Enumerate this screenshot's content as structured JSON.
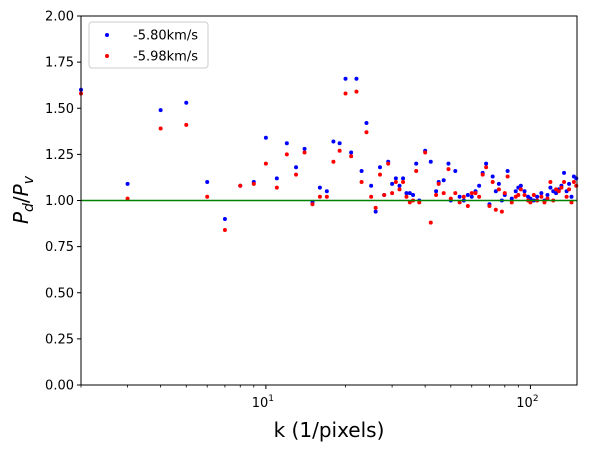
{
  "chart_data": {
    "type": "scatter",
    "xlabel": "k (1/pixels)",
    "ylabel": "P_d/P_v",
    "xscale": "log",
    "xlim": [
      2,
      150
    ],
    "ylim": [
      0,
      2
    ],
    "grid": false,
    "legend_position": "top-left",
    "x_ticks": [
      {
        "value": 10,
        "mantissa": "10",
        "exp": "1"
      },
      {
        "value": 100,
        "mantissa": "10",
        "exp": "2"
      }
    ],
    "y_ticks": [
      "0.00",
      "0.25",
      "0.50",
      "0.75",
      "1.00",
      "1.25",
      "1.50",
      "1.75",
      "2.00"
    ],
    "reference_line": {
      "y": 1.0,
      "color": "#008000"
    },
    "series": [
      {
        "name": "-5.80km/s",
        "color": "#0000ff",
        "points": [
          [
            2,
            1.6
          ],
          [
            3,
            1.09
          ],
          [
            4,
            1.49
          ],
          [
            5,
            1.53
          ],
          [
            6,
            1.1
          ],
          [
            7,
            0.9
          ],
          [
            8,
            1.08
          ],
          [
            9,
            1.1
          ],
          [
            10,
            1.34
          ],
          [
            11,
            1.12
          ],
          [
            12,
            1.31
          ],
          [
            13,
            1.18
          ],
          [
            14,
            1.28
          ],
          [
            15,
            0.99
          ],
          [
            16,
            1.07
          ],
          [
            17,
            1.05
          ],
          [
            18,
            1.32
          ],
          [
            19,
            1.31
          ],
          [
            20,
            1.66
          ],
          [
            21,
            1.26
          ],
          [
            22,
            1.66
          ],
          [
            23,
            1.16
          ],
          [
            24,
            1.42
          ],
          [
            25,
            1.08
          ],
          [
            26,
            0.94
          ],
          [
            27,
            1.18
          ],
          [
            28,
            1.03
          ],
          [
            29,
            1.21
          ],
          [
            30,
            1.09
          ],
          [
            31,
            1.12
          ],
          [
            32,
            1.08
          ],
          [
            33,
            1.12
          ],
          [
            34,
            1.04
          ],
          [
            35,
            1.04
          ],
          [
            36,
            1.03
          ],
          [
            37,
            1.2
          ],
          [
            38,
            1.0
          ],
          [
            40,
            1.27
          ],
          [
            42,
            1.21
          ],
          [
            44,
            1.05
          ],
          [
            45,
            1.1
          ],
          [
            47,
            1.11
          ],
          [
            49,
            1.2
          ],
          [
            50,
            1.0
          ],
          [
            52,
            1.16
          ],
          [
            54,
            1.02
          ],
          [
            56,
            1.0
          ],
          [
            58,
            1.03
          ],
          [
            60,
            1.02
          ],
          [
            62,
            1.05
          ],
          [
            64,
            1.08
          ],
          [
            66,
            1.15
          ],
          [
            68,
            1.2
          ],
          [
            70,
            0.98
          ],
          [
            72,
            1.13
          ],
          [
            74,
            1.05
          ],
          [
            76,
            1.09
          ],
          [
            78,
            1.0
          ],
          [
            80,
            1.03
          ],
          [
            82,
            1.16
          ],
          [
            85,
            1.01
          ],
          [
            88,
            1.05
          ],
          [
            90,
            1.07
          ],
          [
            92,
            1.08
          ],
          [
            95,
            1.05
          ],
          [
            98,
            1.02
          ],
          [
            100,
            1.01
          ],
          [
            103,
            1.0
          ],
          [
            106,
            1.02
          ],
          [
            110,
            1.04
          ],
          [
            113,
            1.0
          ],
          [
            116,
            1.03
          ],
          [
            119,
            1.07
          ],
          [
            122,
            1.05
          ],
          [
            125,
            1.04
          ],
          [
            128,
            1.06
          ],
          [
            131,
            1.08
          ],
          [
            134,
            1.15
          ],
          [
            137,
            1.05
          ],
          [
            140,
            1.09
          ],
          [
            143,
            1.02
          ],
          [
            146,
            1.13
          ],
          [
            149,
            1.12
          ]
        ]
      },
      {
        "name": "-5.98km/s",
        "color": "#ff0000",
        "points": [
          [
            2,
            1.58
          ],
          [
            3,
            1.01
          ],
          [
            4,
            1.39
          ],
          [
            5,
            1.41
          ],
          [
            6,
            1.02
          ],
          [
            7,
            0.84
          ],
          [
            8,
            1.08
          ],
          [
            9,
            1.09
          ],
          [
            10,
            1.2
          ],
          [
            11,
            1.07
          ],
          [
            12,
            1.25
          ],
          [
            13,
            1.14
          ],
          [
            14,
            1.26
          ],
          [
            15,
            0.98
          ],
          [
            16,
            1.02
          ],
          [
            17,
            1.02
          ],
          [
            18,
            1.21
          ],
          [
            19,
            1.27
          ],
          [
            20,
            1.58
          ],
          [
            21,
            1.24
          ],
          [
            22,
            1.59
          ],
          [
            23,
            1.1
          ],
          [
            24,
            1.37
          ],
          [
            25,
            1.02
          ],
          [
            26,
            0.96
          ],
          [
            27,
            1.14
          ],
          [
            28,
            1.03
          ],
          [
            29,
            1.2
          ],
          [
            30,
            1.04
          ],
          [
            31,
            1.1
          ],
          [
            32,
            1.06
          ],
          [
            33,
            1.1
          ],
          [
            34,
            1.02
          ],
          [
            35,
            0.99
          ],
          [
            36,
            1.0
          ],
          [
            37,
            1.16
          ],
          [
            38,
            0.99
          ],
          [
            40,
            1.26
          ],
          [
            42,
            0.88
          ],
          [
            44,
            1.03
          ],
          [
            45,
            1.09
          ],
          [
            47,
            1.04
          ],
          [
            49,
            1.17
          ],
          [
            50,
            1.01
          ],
          [
            52,
            1.04
          ],
          [
            54,
            0.99
          ],
          [
            56,
            1.02
          ],
          [
            58,
            0.97
          ],
          [
            60,
            1.04
          ],
          [
            62,
            1.04
          ],
          [
            64,
            1.02
          ],
          [
            66,
            1.14
          ],
          [
            68,
            1.18
          ],
          [
            70,
            0.97
          ],
          [
            72,
            1.1
          ],
          [
            74,
            0.95
          ],
          [
            76,
            1.06
          ],
          [
            78,
            0.94
          ],
          [
            80,
            1.04
          ],
          [
            82,
            1.13
          ],
          [
            85,
            0.99
          ],
          [
            88,
            1.02
          ],
          [
            90,
            1.03
          ],
          [
            92,
            1.06
          ],
          [
            95,
            1.03
          ],
          [
            98,
            1.0
          ],
          [
            100,
            0.99
          ],
          [
            103,
            1.03
          ],
          [
            106,
            1.0
          ],
          [
            110,
            1.02
          ],
          [
            113,
            0.99
          ],
          [
            116,
            1.01
          ],
          [
            119,
            1.1
          ],
          [
            122,
            1.0
          ],
          [
            125,
            1.06
          ],
          [
            128,
            1.05
          ],
          [
            131,
            1.07
          ],
          [
            134,
            1.1
          ],
          [
            137,
            1.02
          ],
          [
            140,
            1.06
          ],
          [
            143,
            0.99
          ],
          [
            146,
            1.1
          ],
          [
            149,
            1.08
          ]
        ]
      }
    ]
  }
}
